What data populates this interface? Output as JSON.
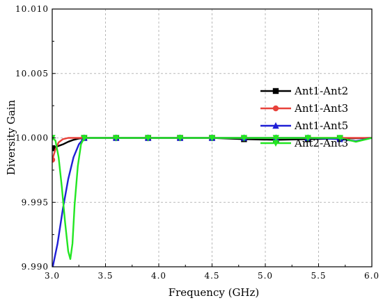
{
  "chart_data": {
    "type": "line",
    "xlabel": "Frequency (GHz)",
    "ylabel": "Diversity Gain",
    "xlim": [
      3.0,
      6.0
    ],
    "ylim": [
      9.99,
      10.01
    ],
    "x_ticks": [
      3.0,
      3.5,
      4.0,
      4.5,
      5.0,
      5.5,
      6.0
    ],
    "x_tick_labels": [
      "3.0",
      "3.5",
      "4.0",
      "4.5",
      "5.0",
      "5.5",
      "6.0"
    ],
    "y_ticks": [
      9.99,
      9.995,
      10.0,
      10.005,
      10.01
    ],
    "y_tick_labels": [
      "9.990",
      "9.995",
      "10.000",
      "10.005",
      "10.010"
    ],
    "grid": true,
    "legend_position": "right",
    "series": [
      {
        "name": "Ant1-Ant2",
        "color": "#000000",
        "marker": "square",
        "x": [
          3.0,
          3.05,
          3.1,
          3.15,
          3.2,
          3.25,
          3.3,
          3.6,
          3.9,
          4.2,
          4.5,
          4.8,
          5.1,
          5.4,
          5.7,
          6.0
        ],
        "y": [
          9.9992,
          9.99935,
          9.9995,
          9.9997,
          9.99985,
          9.99995,
          10.0,
          10.0,
          10.0,
          10.0,
          10.0,
          9.9999,
          9.99985,
          9.9999,
          9.99995,
          10.0
        ]
      },
      {
        "name": "Ant1-Ant3",
        "color": "#e8423b",
        "marker": "circle",
        "x": [
          3.0,
          3.03,
          3.06,
          3.1,
          3.15,
          3.2,
          3.3,
          3.6,
          3.9,
          4.2,
          4.5,
          4.8,
          5.1,
          5.4,
          5.7,
          6.0
        ],
        "y": [
          9.9983,
          9.9991,
          9.99965,
          9.9999,
          10.0,
          10.0,
          10.0,
          10.0,
          10.0,
          10.0,
          10.0,
          10.0,
          10.0,
          10.0,
          10.0,
          10.0
        ]
      },
      {
        "name": "Ant1-Ant5",
        "color": "#1f1fd6",
        "marker": "triangle",
        "x": [
          3.0,
          3.05,
          3.1,
          3.15,
          3.2,
          3.25,
          3.3,
          3.6,
          3.9,
          4.2,
          4.5,
          4.8,
          5.1,
          5.4,
          5.7,
          5.85,
          6.0
        ],
        "y": [
          9.9898,
          9.9918,
          9.9945,
          9.9968,
          9.9985,
          9.9995,
          10.0,
          10.0,
          10.0,
          10.0,
          10.0,
          10.0,
          10.0,
          10.0,
          9.9999,
          9.99975,
          10.0
        ]
      },
      {
        "name": "Ant2-Ant3",
        "color": "#22e622",
        "marker": "triangle-down",
        "x": [
          3.0,
          3.03,
          3.06,
          3.09,
          3.12,
          3.15,
          3.17,
          3.19,
          3.21,
          3.24,
          3.27,
          3.3,
          3.6,
          3.9,
          4.2,
          4.5,
          4.8,
          5.1,
          5.4,
          5.7,
          5.85,
          6.0
        ],
        "y": [
          10.0,
          9.9998,
          9.9985,
          9.9962,
          9.9935,
          9.9912,
          9.9906,
          9.9918,
          9.9948,
          9.9978,
          9.9995,
          10.0,
          10.0,
          10.0,
          10.0,
          10.0,
          10.0,
          10.0,
          10.0,
          10.0,
          9.9997,
          10.0
        ]
      }
    ]
  }
}
